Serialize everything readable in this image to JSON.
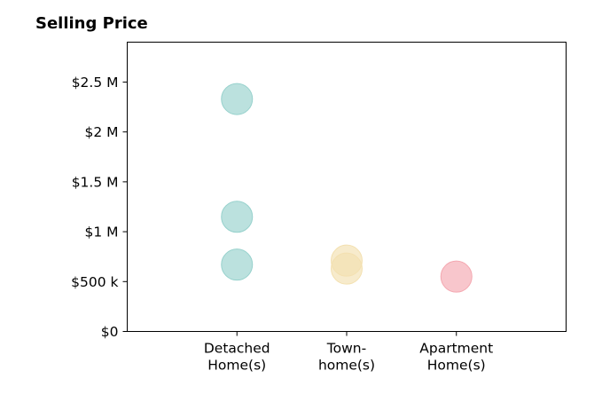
{
  "chart_data": {
    "type": "scatter",
    "title": "Selling Price",
    "xlabel": "",
    "ylabel": "",
    "categories": [
      [
        "Detached",
        "Home(s)"
      ],
      [
        "Town-",
        "home(s)"
      ],
      [
        "Apartment",
        "Home(s)"
      ]
    ],
    "xlim": [
      0,
      4
    ],
    "ylim": [
      0,
      2900000
    ],
    "yticks": [
      {
        "value": 0,
        "label": "$0"
      },
      {
        "value": 500000,
        "label": "$500 k"
      },
      {
        "value": 1000000,
        "label": "$1 M"
      },
      {
        "value": 1500000,
        "label": "$1.5 M"
      },
      {
        "value": 2000000,
        "label": "$2 M"
      },
      {
        "value": 2500000,
        "label": "$2.5 M"
      }
    ],
    "grid": false,
    "series": [
      {
        "category": 0,
        "color": "#96d1cc",
        "values": [
          2330000,
          1150000,
          670000
        ]
      },
      {
        "category": 1,
        "color": "#f3e0b0",
        "values": [
          710000,
          630000
        ]
      },
      {
        "category": 2,
        "color": "#f4a7b0",
        "values": [
          550000
        ]
      }
    ]
  }
}
